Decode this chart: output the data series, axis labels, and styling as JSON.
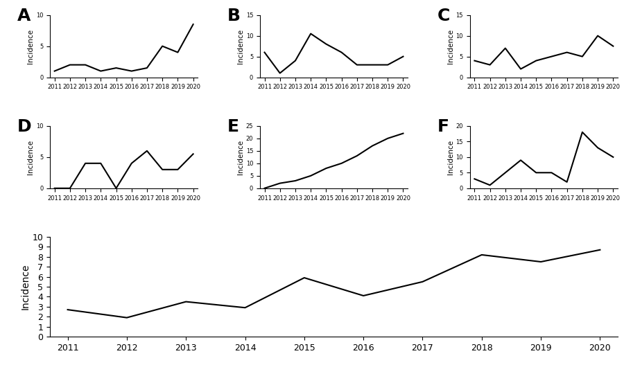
{
  "years": [
    2011,
    2012,
    2013,
    2014,
    2015,
    2016,
    2017,
    2018,
    2019,
    2020
  ],
  "panels": {
    "A": {
      "values": [
        1.0,
        2.0,
        2.0,
        1.0,
        1.5,
        1.0,
        1.5,
        5.0,
        4.0,
        8.5
      ],
      "ylim": [
        0,
        10
      ],
      "yticks": [
        0,
        5,
        10
      ]
    },
    "B": {
      "values": [
        6.0,
        1.0,
        4.0,
        10.5,
        8.0,
        6.0,
        3.0,
        3.0,
        3.0,
        5.0
      ],
      "ylim": [
        0,
        15
      ],
      "yticks": [
        0,
        5,
        10,
        15
      ]
    },
    "C": {
      "values": [
        4.0,
        3.0,
        7.0,
        2.0,
        4.0,
        5.0,
        6.0,
        5.0,
        10.0,
        7.5
      ],
      "ylim": [
        0,
        15
      ],
      "yticks": [
        0,
        5,
        10,
        15
      ]
    },
    "D": {
      "values": [
        0.0,
        0.0,
        4.0,
        4.0,
        0.0,
        4.0,
        6.0,
        3.0,
        3.0,
        5.5
      ],
      "ylim": [
        0,
        10
      ],
      "yticks": [
        0,
        5,
        10
      ]
    },
    "E": {
      "values": [
        0.0,
        2.0,
        3.0,
        5.0,
        8.0,
        10.0,
        13.0,
        17.0,
        20.0,
        22.0
      ],
      "ylim": [
        0,
        25
      ],
      "yticks": [
        0,
        5,
        10,
        15,
        20,
        25
      ]
    },
    "F": {
      "values": [
        3.0,
        1.0,
        5.0,
        9.0,
        5.0,
        5.0,
        2.0,
        18.0,
        13.0,
        10.0
      ],
      "ylim": [
        0,
        20
      ],
      "yticks": [
        0,
        5,
        10,
        15,
        20
      ]
    },
    "G": {
      "values": [
        2.7,
        1.9,
        3.5,
        2.9,
        5.9,
        4.1,
        5.5,
        8.2,
        7.5,
        8.7
      ],
      "ylim": [
        0,
        10
      ],
      "yticks": [
        0,
        1,
        2,
        3,
        4,
        5,
        6,
        7,
        8,
        9,
        10
      ]
    }
  },
  "line_color": "#000000",
  "line_width": 1.5,
  "small_tick_fontsize": 6.0,
  "large_tick_fontsize": 9.0,
  "small_ylabel_fontsize": 7.5,
  "large_ylabel_fontsize": 10.0,
  "panel_label_fontsize": 18,
  "ylabel": "Incidence",
  "background_color": "#ffffff"
}
